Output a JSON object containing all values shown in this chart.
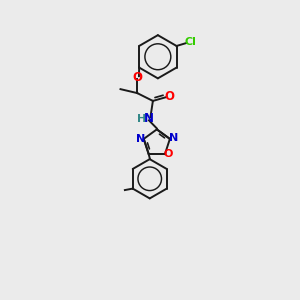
{
  "background_color": "#ebebeb",
  "bond_color": "#1a1a1a",
  "oxygen_color": "#ff0000",
  "nitrogen_color": "#0000cc",
  "chlorine_color": "#33cc00",
  "hydrogen_color": "#338888",
  "line_width": 1.4,
  "dbo": 0.018,
  "figsize": [
    3.0,
    3.0
  ],
  "dpi": 100,
  "xlim": [
    -0.5,
    0.5
  ],
  "ylim": [
    -1.5,
    1.5
  ]
}
